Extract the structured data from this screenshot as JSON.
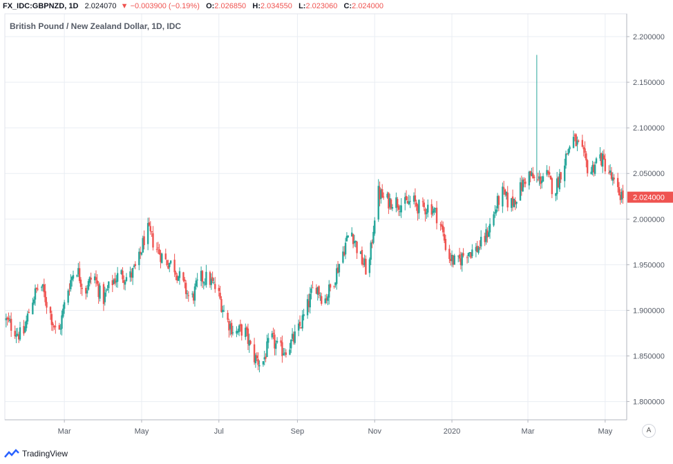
{
  "header": {
    "symbol": "FX_IDC:GBPNZD, 1D",
    "last": "2.024070",
    "change": "−0.003900 (−0.19%)",
    "o_label": "O:",
    "o_value": "2.026850",
    "h_label": "H:",
    "h_value": "2.034550",
    "l_label": "L:",
    "l_value": "2.023060",
    "c_label": "C:",
    "c_value": "2.024000"
  },
  "subtitle": "British Pound / New Zealand Dollar, 1D, IDC",
  "footer": {
    "brand": "TradingView"
  },
  "auto_button": "A",
  "colors": {
    "up": "#26a69a",
    "down": "#ef5350",
    "grid": "#e9edf3",
    "axis_text": "#555b66"
  },
  "chart_data": {
    "type": "candlestick",
    "title": "British Pound / New Zealand Dollar, 1D, IDC",
    "ylim": [
      1.78,
      2.225
    ],
    "y_ticks": [
      "2.200000",
      "2.150000",
      "2.100000",
      "2.050000",
      "2.000000",
      "1.950000",
      "1.900000",
      "1.850000",
      "1.800000"
    ],
    "x_ticks": [
      "Mar",
      "May",
      "Jul",
      "Sep",
      "Nov",
      "2020",
      "Mar",
      "May"
    ],
    "last_price": "2.024000",
    "grid": true,
    "x_range": [
      "2019-01-13",
      "2020-05-18"
    ],
    "series": [
      {
        "date": "2019-01-13",
        "value": 1.89
      },
      {
        "date": "2019-01-27",
        "value": 1.87
      },
      {
        "date": "2019-02-03",
        "value": 1.91
      },
      {
        "date": "2019-02-10",
        "value": 1.93
      },
      {
        "date": "2019-02-17",
        "value": 1.9
      },
      {
        "date": "2019-02-24",
        "value": 1.87
      },
      {
        "date": "2019-03-03",
        "value": 1.92
      },
      {
        "date": "2019-03-10",
        "value": 1.95
      },
      {
        "date": "2019-03-17",
        "value": 1.92
      },
      {
        "date": "2019-03-24",
        "value": 1.94
      },
      {
        "date": "2019-03-31",
        "value": 1.91
      },
      {
        "date": "2019-04-07",
        "value": 1.93
      },
      {
        "date": "2019-04-14",
        "value": 1.94
      },
      {
        "date": "2019-04-21",
        "value": 1.935
      },
      {
        "date": "2019-04-28",
        "value": 1.95
      },
      {
        "date": "2019-05-05",
        "value": 1.99
      },
      {
        "date": "2019-05-12",
        "value": 1.97
      },
      {
        "date": "2019-05-19",
        "value": 1.955
      },
      {
        "date": "2019-05-26",
        "value": 1.95
      },
      {
        "date": "2019-06-02",
        "value": 1.93
      },
      {
        "date": "2019-06-09",
        "value": 1.91
      },
      {
        "date": "2019-06-16",
        "value": 1.935
      },
      {
        "date": "2019-06-23",
        "value": 1.935
      },
      {
        "date": "2019-06-30",
        "value": 1.92
      },
      {
        "date": "2019-07-07",
        "value": 1.89
      },
      {
        "date": "2019-07-14",
        "value": 1.875
      },
      {
        "date": "2019-07-21",
        "value": 1.88
      },
      {
        "date": "2019-07-28",
        "value": 1.85
      },
      {
        "date": "2019-08-04",
        "value": 1.84
      },
      {
        "date": "2019-08-11",
        "value": 1.87
      },
      {
        "date": "2019-08-18",
        "value": 1.855
      },
      {
        "date": "2019-08-25",
        "value": 1.86
      },
      {
        "date": "2019-09-01",
        "value": 1.875
      },
      {
        "date": "2019-09-08",
        "value": 1.9
      },
      {
        "date": "2019-09-15",
        "value": 1.93
      },
      {
        "date": "2019-09-22",
        "value": 1.91
      },
      {
        "date": "2019-09-29",
        "value": 1.93
      },
      {
        "date": "2019-10-06",
        "value": 1.96
      },
      {
        "date": "2019-10-13",
        "value": 1.99
      },
      {
        "date": "2019-10-20",
        "value": 1.96
      },
      {
        "date": "2019-10-27",
        "value": 1.94
      },
      {
        "date": "2019-11-03",
        "value": 2.03
      },
      {
        "date": "2019-11-10",
        "value": 2.02
      },
      {
        "date": "2019-11-17",
        "value": 2.02
      },
      {
        "date": "2019-11-24",
        "value": 2.015
      },
      {
        "date": "2019-12-01",
        "value": 2.02
      },
      {
        "date": "2019-12-08",
        "value": 2.01
      },
      {
        "date": "2019-12-15",
        "value": 2.015
      },
      {
        "date": "2019-12-22",
        "value": 2.0
      },
      {
        "date": "2019-12-29",
        "value": 1.96
      },
      {
        "date": "2020-01-05",
        "value": 1.95
      },
      {
        "date": "2020-01-12",
        "value": 1.965
      },
      {
        "date": "2020-01-19",
        "value": 1.965
      },
      {
        "date": "2020-01-26",
        "value": 1.975
      },
      {
        "date": "2020-02-02",
        "value": 2.0
      },
      {
        "date": "2020-02-09",
        "value": 2.03
      },
      {
        "date": "2020-02-16",
        "value": 2.015
      },
      {
        "date": "2020-02-23",
        "value": 2.03
      },
      {
        "date": "2020-03-01",
        "value": 2.05
      },
      {
        "date": "2020-03-08",
        "value": 2.04
      },
      {
        "date": "2020-03-15",
        "value": 2.05
      },
      {
        "date": "2020-03-22",
        "value": 2.03
      },
      {
        "date": "2020-03-29",
        "value": 2.06
      },
      {
        "date": "2020-04-05",
        "value": 2.09
      },
      {
        "date": "2020-04-12",
        "value": 2.075
      },
      {
        "date": "2020-04-19",
        "value": 2.05
      },
      {
        "date": "2020-04-26",
        "value": 2.07
      },
      {
        "date": "2020-05-03",
        "value": 2.055
      },
      {
        "date": "2020-05-10",
        "value": 2.03
      },
      {
        "date": "2020-05-17",
        "value": 2.024
      }
    ],
    "spikes": [
      {
        "date": "2020-03-08",
        "high": 2.18
      }
    ]
  }
}
